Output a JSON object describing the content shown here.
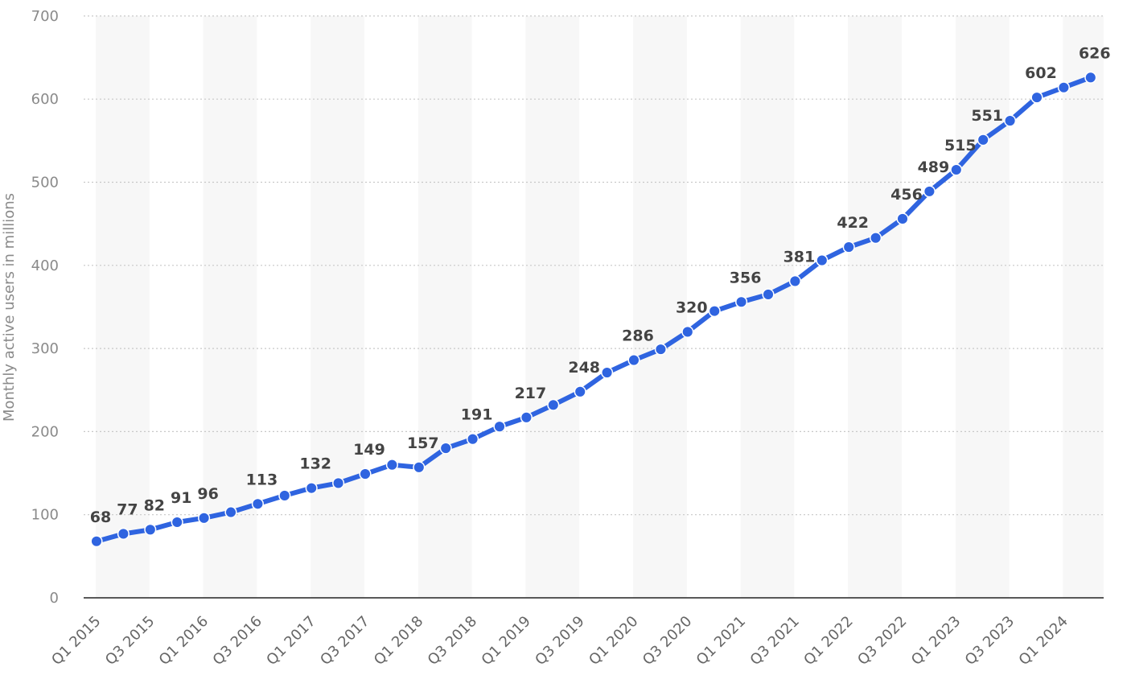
{
  "chart_data": {
    "type": "line",
    "title": "",
    "xlabel": "",
    "ylabel": "Monthly active users in millions",
    "ylim": [
      0,
      700
    ],
    "yticks": [
      0,
      100,
      200,
      300,
      400,
      500,
      600,
      700
    ],
    "grid": "horizontal dotted",
    "categories": [
      "Q1 2015",
      "Q2 2015",
      "Q3 2015",
      "Q4 2015",
      "Q1 2016",
      "Q2 2016",
      "Q3 2016",
      "Q4 2016",
      "Q1 2017",
      "Q2 2017",
      "Q3 2017",
      "Q4 2017",
      "Q1 2018",
      "Q2 2018",
      "Q3 2018",
      "Q4 2018",
      "Q1 2019",
      "Q2 2019",
      "Q3 2019",
      "Q4 2019",
      "Q1 2020",
      "Q2 2020",
      "Q3 2020",
      "Q4 2020",
      "Q1 2021",
      "Q2 2021",
      "Q3 2021",
      "Q4 2021",
      "Q1 2022",
      "Q2 2022",
      "Q3 2022",
      "Q4 2022",
      "Q1 2023",
      "Q2 2023",
      "Q3 2023",
      "Q4 2023",
      "Q1 2024",
      "Q2 2024"
    ],
    "tick_labels": [
      "Q1 2015",
      "Q3 2015",
      "Q1 2016",
      "Q3 2016",
      "Q1 2017",
      "Q3 2017",
      "Q1 2018",
      "Q3 2018",
      "Q1 2019",
      "Q3 2019",
      "Q1 2020",
      "Q3 2020",
      "Q1 2021",
      "Q3 2021",
      "Q1 2022",
      "Q3 2022",
      "Q1 2023",
      "Q3 2023",
      "Q1 2024"
    ],
    "values": [
      68,
      77,
      82,
      91,
      96,
      103,
      113,
      123,
      132,
      138,
      149,
      160,
      157,
      180,
      191,
      206,
      217,
      232,
      248,
      271,
      286,
      299,
      320,
      345,
      356,
      365,
      381,
      406,
      422,
      433,
      456,
      489,
      515,
      551,
      574,
      602,
      614,
      626
    ],
    "data_labels": [
      "68",
      "77",
      "82",
      "91",
      "96",
      null,
      "113",
      null,
      "132",
      null,
      "149",
      null,
      "157",
      null,
      "191",
      null,
      "217",
      null,
      "248",
      null,
      "286",
      null,
      "320",
      null,
      "356",
      null,
      "381",
      null,
      "422",
      null,
      "456",
      "489",
      "515",
      "551",
      null,
      "602",
      null,
      "626"
    ],
    "colors": {
      "line": "#2f64e0",
      "band": "#f7f7f7",
      "grid": "#c8c8c8",
      "axis": "#222222"
    }
  }
}
